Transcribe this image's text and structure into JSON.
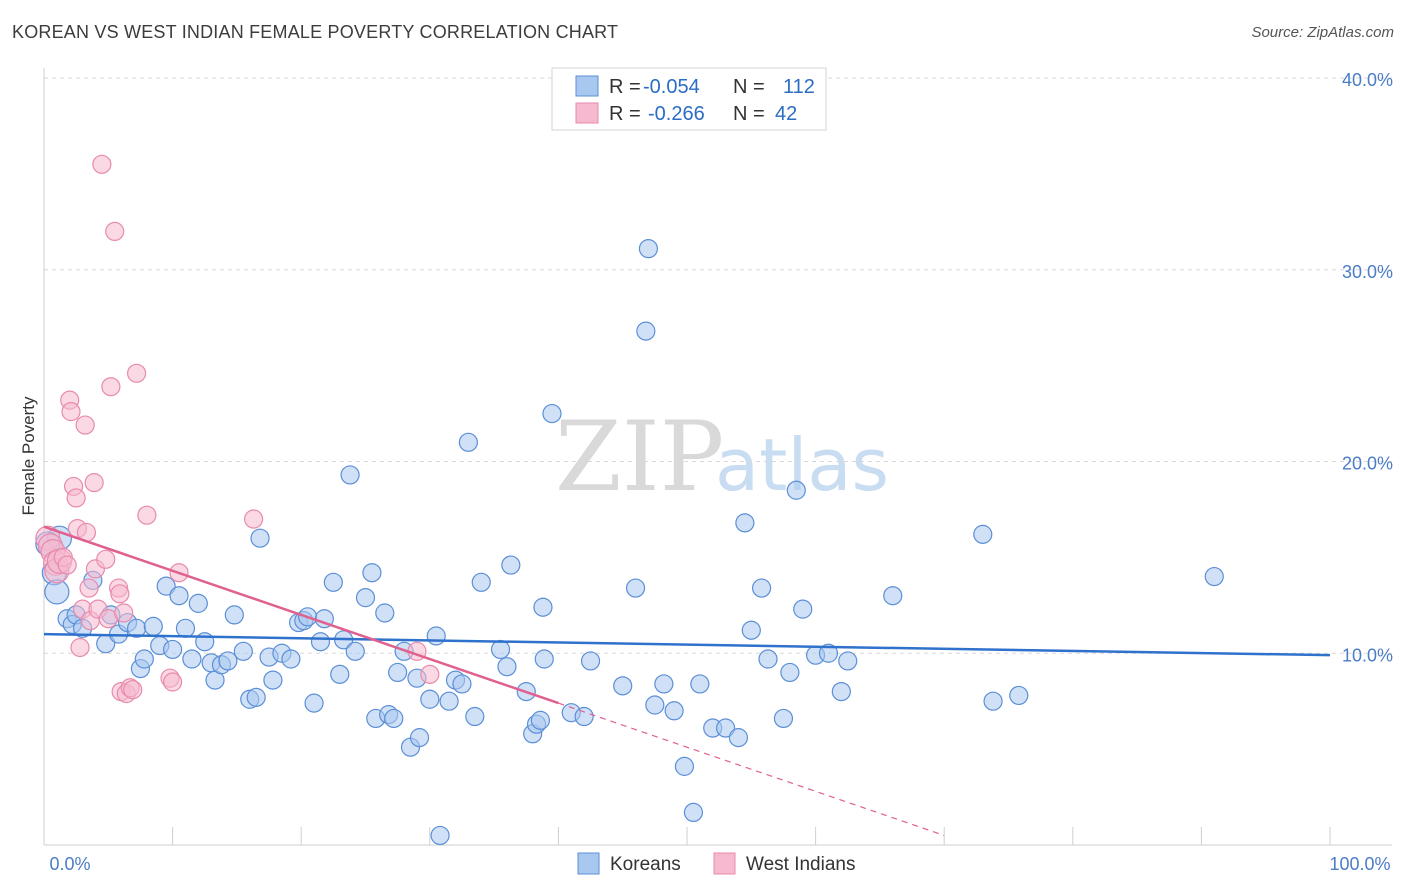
{
  "title": "KOREAN VS WEST INDIAN FEMALE POVERTY CORRELATION CHART",
  "source": "Source: ZipAtlas.com",
  "watermark": {
    "zip": "ZIP",
    "atlas": "atlas"
  },
  "colors": {
    "korean_fill": "#a9c8f0",
    "korean_stroke": "#5b8fd6",
    "korean_line": "#2f72cc",
    "west_indian_fill": "#f6b9cf",
    "west_indian_stroke": "#e88aac",
    "west_indian_line": "#e0608f",
    "grid": "#d8d8d8",
    "axis_text": "#4a7cc7"
  },
  "legend": {
    "rows": [
      {
        "r_label": "R =",
        "r_value": "-0.054",
        "n_label": "N =",
        "n_value": "112"
      },
      {
        "r_label": "R =",
        "r_value": "-0.266",
        "n_label": "N =",
        "n_value": "42"
      }
    ]
  },
  "chart_data": {
    "type": "scatter",
    "title": "KOREAN VS WEST INDIAN FEMALE POVERTY CORRELATION CHART",
    "xlabel": "",
    "ylabel": "Female Poverty",
    "xlim": [
      0,
      100
    ],
    "ylim": [
      0,
      40
    ],
    "x_tick_labels": [
      "0.0%",
      "100.0%"
    ],
    "y_ticks": [
      10,
      20,
      30,
      40
    ],
    "y_tick_labels": [
      "10.0%",
      "20.0%",
      "30.0%",
      "40.0%"
    ],
    "grid": true,
    "legend_position": "top-center",
    "series": [
      {
        "name": "Koreans",
        "r": -0.054,
        "n": 112,
        "trend": {
          "x": [
            0,
            100
          ],
          "y": [
            11.0,
            9.9
          ]
        },
        "points": [
          [
            0.8,
            14.2
          ],
          [
            1.0,
            13.2
          ],
          [
            1.2,
            16.0
          ],
          [
            1.8,
            11.8
          ],
          [
            2.2,
            11.5
          ],
          [
            2.5,
            12.0
          ],
          [
            3.0,
            11.3
          ],
          [
            3.8,
            13.8
          ],
          [
            4.8,
            10.5
          ],
          [
            5.2,
            12.0
          ],
          [
            5.8,
            11.0
          ],
          [
            6.5,
            11.6
          ],
          [
            7.2,
            11.3
          ],
          [
            7.5,
            9.2
          ],
          [
            7.8,
            9.7
          ],
          [
            8.5,
            11.4
          ],
          [
            9.0,
            10.4
          ],
          [
            9.5,
            13.5
          ],
          [
            10.0,
            10.2
          ],
          [
            10.5,
            13.0
          ],
          [
            11.0,
            11.3
          ],
          [
            11.5,
            9.7
          ],
          [
            12.0,
            12.6
          ],
          [
            12.5,
            10.6
          ],
          [
            13.0,
            9.5
          ],
          [
            13.3,
            8.6
          ],
          [
            13.8,
            9.4
          ],
          [
            14.3,
            9.6
          ],
          [
            14.8,
            12.0
          ],
          [
            15.5,
            10.1
          ],
          [
            16.0,
            7.6
          ],
          [
            16.5,
            7.7
          ],
          [
            16.8,
            16.0
          ],
          [
            17.5,
            9.8
          ],
          [
            17.8,
            8.6
          ],
          [
            18.5,
            10.0
          ],
          [
            19.2,
            9.7
          ],
          [
            19.8,
            11.6
          ],
          [
            20.2,
            11.7
          ],
          [
            20.5,
            11.9
          ],
          [
            21.0,
            7.4
          ],
          [
            21.5,
            10.6
          ],
          [
            21.8,
            11.8
          ],
          [
            22.5,
            13.7
          ],
          [
            23.0,
            8.9
          ],
          [
            23.3,
            10.7
          ],
          [
            23.8,
            19.3
          ],
          [
            24.2,
            10.1
          ],
          [
            25.0,
            12.9
          ],
          [
            25.5,
            14.2
          ],
          [
            25.8,
            6.6
          ],
          [
            26.5,
            12.1
          ],
          [
            26.8,
            6.8
          ],
          [
            27.2,
            6.6
          ],
          [
            27.5,
            9.0
          ],
          [
            28.0,
            10.1
          ],
          [
            28.5,
            5.1
          ],
          [
            29.0,
            8.7
          ],
          [
            29.2,
            5.6
          ],
          [
            30.0,
            7.6
          ],
          [
            30.5,
            10.9
          ],
          [
            30.8,
            0.5
          ],
          [
            31.5,
            7.5
          ],
          [
            32.0,
            8.6
          ],
          [
            32.5,
            8.4
          ],
          [
            33.0,
            21.0
          ],
          [
            33.5,
            6.7
          ],
          [
            34.0,
            13.7
          ],
          [
            35.5,
            10.2
          ],
          [
            36.0,
            9.3
          ],
          [
            36.3,
            14.6
          ],
          [
            37.5,
            8.0
          ],
          [
            38.0,
            5.8
          ],
          [
            38.3,
            6.3
          ],
          [
            38.6,
            6.5
          ],
          [
            38.8,
            12.4
          ],
          [
            38.9,
            9.7
          ],
          [
            39.5,
            22.5
          ],
          [
            41.0,
            6.9
          ],
          [
            42.0,
            6.7
          ],
          [
            42.5,
            9.6
          ],
          [
            45.0,
            8.3
          ],
          [
            46.0,
            13.4
          ],
          [
            46.8,
            26.8
          ],
          [
            47.0,
            31.1
          ],
          [
            47.5,
            7.3
          ],
          [
            48.2,
            8.4
          ],
          [
            49.0,
            7.0
          ],
          [
            49.8,
            4.1
          ],
          [
            50.5,
            1.7
          ],
          [
            51.0,
            8.4
          ],
          [
            52.0,
            6.1
          ],
          [
            53.0,
            6.1
          ],
          [
            54.0,
            5.6
          ],
          [
            54.5,
            16.8
          ],
          [
            55.0,
            11.2
          ],
          [
            55.8,
            13.4
          ],
          [
            56.3,
            9.7
          ],
          [
            57.5,
            6.6
          ],
          [
            58.0,
            9.0
          ],
          [
            58.5,
            18.5
          ],
          [
            59.0,
            12.3
          ],
          [
            60.0,
            9.9
          ],
          [
            61.0,
            10.0
          ],
          [
            62.0,
            8.0
          ],
          [
            62.5,
            9.6
          ],
          [
            66.0,
            13.0
          ],
          [
            73.0,
            16.2
          ],
          [
            73.8,
            7.5
          ],
          [
            75.8,
            7.8
          ],
          [
            91.0,
            14.0
          ],
          [
            0.3,
            15.7
          ]
        ]
      },
      {
        "name": "West Indians",
        "r": -0.266,
        "n": 42,
        "trend": {
          "x": [
            0,
            40
          ],
          "y": [
            16.6,
            7.4
          ],
          "dashed_extension": {
            "x": [
              40,
              70
            ],
            "y": [
              7.4,
              0.5
            ]
          }
        },
        "points": [
          [
            0.3,
            16.0
          ],
          [
            0.5,
            15.6
          ],
          [
            0.7,
            15.3
          ],
          [
            0.9,
            14.7
          ],
          [
            1.0,
            14.3
          ],
          [
            1.2,
            14.8
          ],
          [
            1.5,
            15.0
          ],
          [
            1.8,
            14.6
          ],
          [
            2.0,
            23.2
          ],
          [
            2.1,
            22.6
          ],
          [
            2.3,
            18.7
          ],
          [
            2.5,
            18.1
          ],
          [
            2.6,
            16.5
          ],
          [
            2.8,
            10.3
          ],
          [
            3.0,
            12.3
          ],
          [
            3.2,
            21.9
          ],
          [
            3.3,
            16.3
          ],
          [
            3.5,
            13.4
          ],
          [
            3.6,
            11.7
          ],
          [
            3.9,
            18.9
          ],
          [
            4.0,
            14.4
          ],
          [
            4.2,
            12.3
          ],
          [
            4.5,
            35.5
          ],
          [
            4.8,
            14.9
          ],
          [
            5.0,
            11.8
          ],
          [
            5.2,
            23.9
          ],
          [
            5.5,
            32.0
          ],
          [
            5.8,
            13.4
          ],
          [
            5.9,
            13.1
          ],
          [
            6.0,
            8.0
          ],
          [
            6.2,
            12.1
          ],
          [
            6.4,
            7.9
          ],
          [
            6.7,
            8.2
          ],
          [
            6.9,
            8.1
          ],
          [
            7.2,
            24.6
          ],
          [
            8.0,
            17.2
          ],
          [
            9.8,
            8.7
          ],
          [
            10.0,
            8.5
          ],
          [
            10.5,
            14.2
          ],
          [
            16.3,
            17.0
          ],
          [
            29.0,
            10.1
          ],
          [
            30.0,
            8.9
          ]
        ]
      }
    ]
  }
}
